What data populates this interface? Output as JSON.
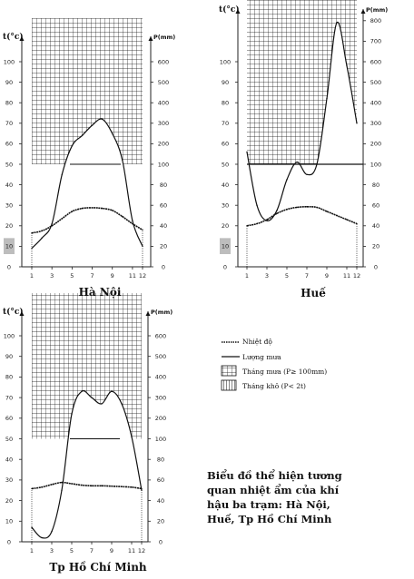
{
  "chart_data": [
    {
      "type": "line",
      "station": "Hà Nội",
      "left_axis_label": "t(°c)",
      "right_axis_label": "P(mm)",
      "x": [
        1,
        2,
        3,
        4,
        5,
        6,
        7,
        8,
        9,
        10,
        11,
        12
      ],
      "x_tick_labels": [
        "1",
        "3",
        "5",
        "7",
        "9",
        "11",
        "12"
      ],
      "left_ticks": [
        "0",
        "10",
        "20",
        "30",
        "40",
        "50",
        "60",
        "70",
        "80",
        "90",
        "100"
      ],
      "right_ticks": [
        "0",
        "20",
        "40",
        "60",
        "80",
        "100",
        "200",
        "300",
        "400",
        "500",
        "600"
      ],
      "series": [
        {
          "name": "Nhiệt độ",
          "values": [
            16.5,
            17.5,
            20,
            23.5,
            27,
            28.5,
            28.8,
            28.5,
            27.5,
            24.5,
            21,
            18
          ]
        },
        {
          "name": "Lượng mưa",
          "values": [
            18,
            28,
            42,
            90,
            190,
            240,
            290,
            320,
            250,
            120,
            45,
            20
          ]
        }
      ]
    },
    {
      "type": "line",
      "station": "Huế",
      "left_axis_label": "t(°c)",
      "right_axis_label": "P(mm)",
      "x": [
        1,
        2,
        3,
        4,
        5,
        6,
        7,
        8,
        9,
        10,
        11,
        12
      ],
      "x_tick_labels": [
        "1",
        "3",
        "5",
        "7",
        "9",
        "11",
        "12"
      ],
      "left_ticks": [
        "0",
        "10",
        "20",
        "30",
        "40",
        "50",
        "60",
        "70",
        "80",
        "90",
        "100"
      ],
      "right_ticks": [
        "0",
        "20",
        "40",
        "60",
        "80",
        "100",
        "200",
        "300",
        "400",
        "500",
        "600",
        "700",
        "800"
      ],
      "series": [
        {
          "name": "Nhiệt độ",
          "values": [
            20,
            21,
            23,
            26,
            28,
            29,
            29.3,
            29,
            27,
            25,
            23,
            21
          ]
        },
        {
          "name": "Lượng mưa",
          "values": [
            160,
            60,
            45,
            55,
            85,
            110,
            90,
            100,
            420,
            790,
            580,
            300
          ]
        }
      ]
    },
    {
      "type": "line",
      "station": "Tp Hồ Chí Minh",
      "left_axis_label": "t(°c)",
      "right_axis_label": "P(mm)",
      "x": [
        1,
        2,
        3,
        4,
        5,
        6,
        7,
        8,
        9,
        10,
        11,
        12
      ],
      "x_tick_labels": [
        "1",
        "3",
        "5",
        "7",
        "9",
        "11",
        "12"
      ],
      "left_ticks": [
        "0",
        "10",
        "20",
        "30",
        "40",
        "50",
        "60",
        "70",
        "80",
        "90",
        "100"
      ],
      "right_ticks": [
        "0",
        "20",
        "40",
        "60",
        "80",
        "100",
        "200",
        "300",
        "400",
        "500",
        "600"
      ],
      "series": [
        {
          "name": "Nhiệt độ",
          "values": [
            25.8,
            26.5,
            27.8,
            28.8,
            28.2,
            27.5,
            27.2,
            27.2,
            27,
            26.8,
            26.5,
            25.8
          ]
        },
        {
          "name": "Lượng mưa",
          "values": [
            14,
            4,
            10,
            50,
            220,
            330,
            300,
            270,
            330,
            270,
            110,
            50
          ]
        }
      ]
    }
  ],
  "legend": {
    "temperature": "Nhiệt độ",
    "rainfall": "Lượng mưa",
    "wet_months": "Tháng mưa (P≥ 100mm)",
    "dry_months": "Tháng khô (P< 2t)"
  },
  "caption": [
    "Biểu đồ thể hiện tương",
    "quan nhiệt ẩm của khí",
    "hậu ba trạm: Hà Nội,",
    "Huế, Tp Hồ Chí Minh"
  ]
}
